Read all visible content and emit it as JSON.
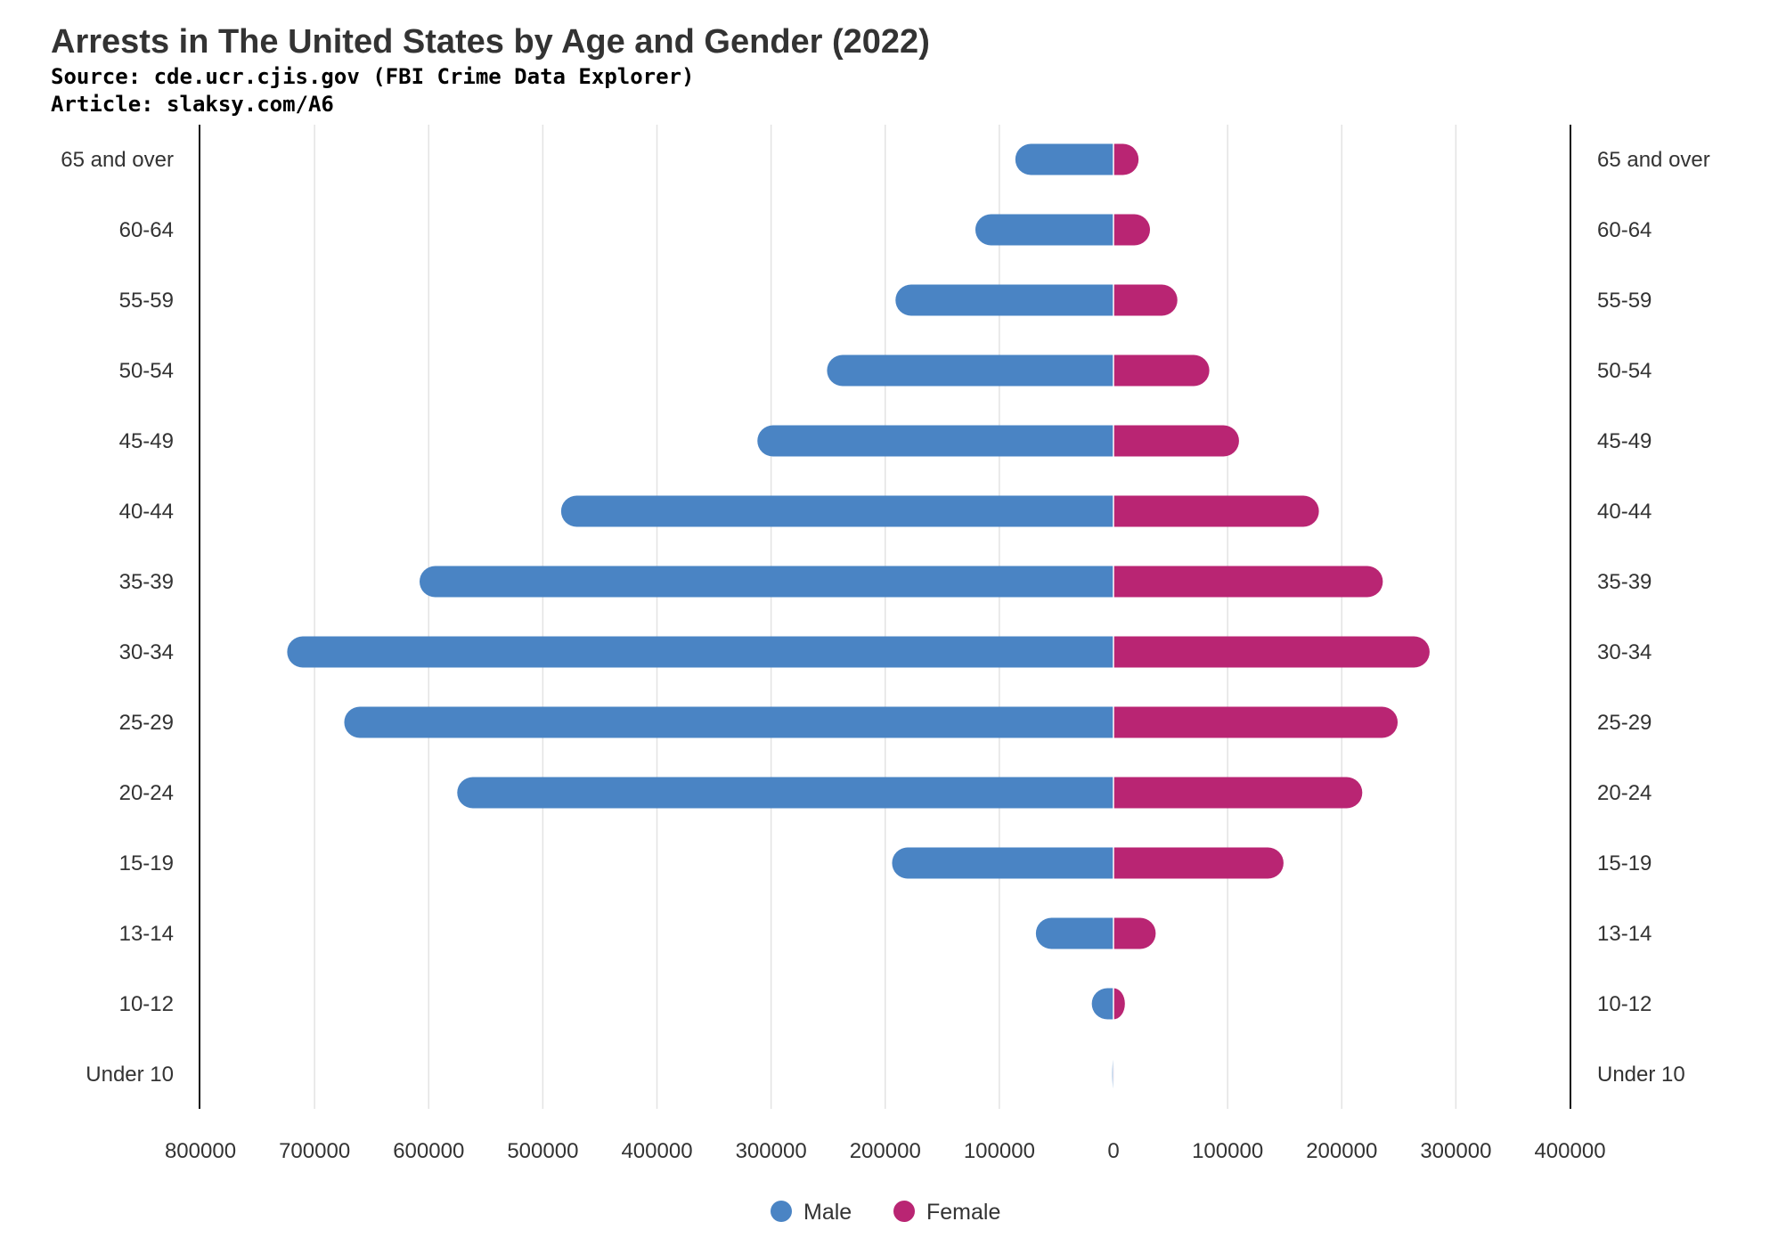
{
  "chart_data": {
    "type": "bar",
    "orientation": "horizontal",
    "layout": "population-pyramid",
    "title": "Arrests in The United States by Age and Gender (2022)",
    "subtitle_lines": [
      "Source: cde.ucr.cjis.gov (FBI Crime Data Explorer)",
      "Article: slaksy.com/A6"
    ],
    "categories": [
      "65 and over",
      "60-64",
      "55-59",
      "50-54",
      "45-49",
      "40-44",
      "35-39",
      "30-34",
      "25-29",
      "20-24",
      "15-19",
      "13-14",
      "10-12",
      "Under 10"
    ],
    "series": [
      {
        "name": "Male",
        "color": "#4a84c4",
        "side": "left",
        "values": [
          86000,
          121000,
          191000,
          251000,
          312000,
          484000,
          608000,
          724000,
          674000,
          575000,
          194000,
          68000,
          19000,
          1000
        ]
      },
      {
        "name": "Female",
        "color": "#b92573",
        "side": "right",
        "values": [
          22000,
          32000,
          56000,
          84000,
          110000,
          180000,
          236000,
          277000,
          249000,
          218000,
          149000,
          37000,
          10000,
          500
        ]
      }
    ],
    "x_tick_labels_left": [
      "800000",
      "700000",
      "600000",
      "500000",
      "400000",
      "300000",
      "200000",
      "100000",
      "0"
    ],
    "x_tick_labels_right": [
      "100000",
      "200000",
      "300000",
      "400000"
    ],
    "xlim_left": [
      800000,
      0
    ],
    "xlim_right": [
      0,
      400000
    ],
    "grid": true,
    "legend_placement": "bottom-center"
  }
}
